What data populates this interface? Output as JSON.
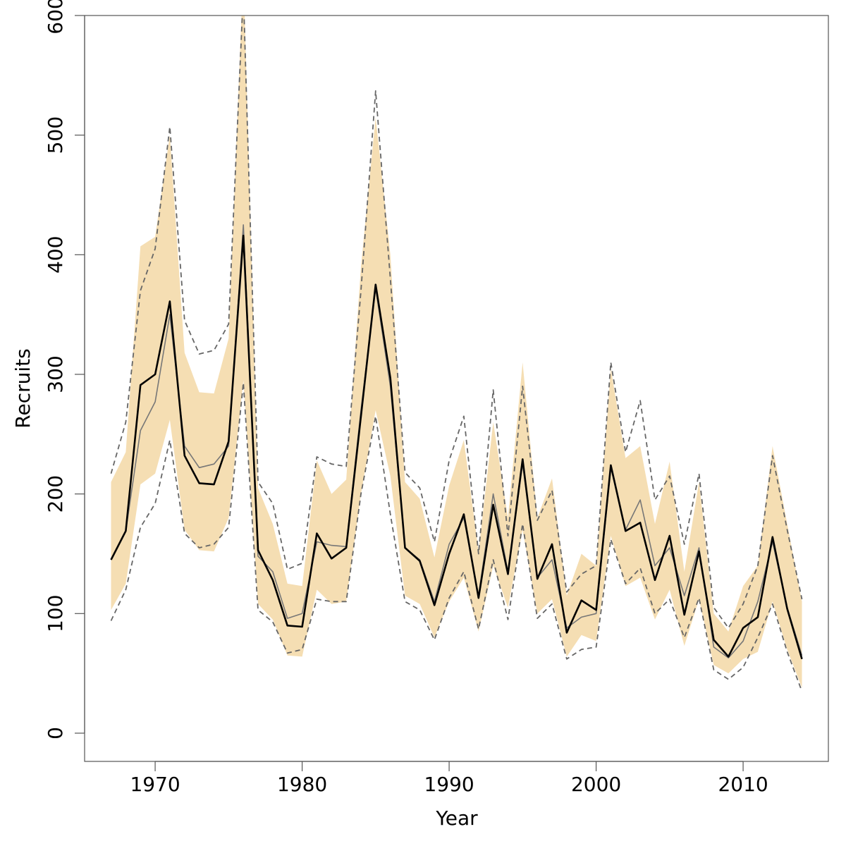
{
  "chart_data": {
    "type": "line",
    "xlabel": "Year",
    "ylabel": "Recruits",
    "x": [
      1967,
      1968,
      1969,
      1970,
      1971,
      1972,
      1973,
      1974,
      1975,
      1976,
      1977,
      1978,
      1979,
      1980,
      1981,
      1982,
      1983,
      1984,
      1985,
      1986,
      1987,
      1988,
      1989,
      1990,
      1991,
      1992,
      1993,
      1994,
      1995,
      1996,
      1997,
      1998,
      1999,
      2000,
      2001,
      2002,
      2003,
      2004,
      2005,
      2006,
      2007,
      2008,
      2009,
      2010,
      2011,
      2012,
      2013,
      2014
    ],
    "xlim": [
      1965.2,
      2015.8
    ],
    "xticks": [
      1970,
      1980,
      1990,
      2000,
      2010
    ],
    "ylim": [
      -23.6,
      600
    ],
    "yticks": [
      0,
      100,
      200,
      300,
      400,
      500,
      600
    ],
    "series": [
      {
        "kind": "band",
        "color": "#f5deb3",
        "upper": [
          210,
          235,
          407,
          415,
          500,
          318,
          285,
          284,
          330,
          640,
          205,
          175,
          125,
          123,
          228,
          200,
          212,
          390,
          515,
          400,
          210,
          196,
          147,
          207,
          245,
          152,
          260,
          180,
          310,
          180,
          213,
          115,
          150,
          140,
          305,
          230,
          240,
          175,
          227,
          135,
          210,
          100,
          85,
          123,
          140,
          240,
          175,
          110
        ],
        "lower": [
          103,
          125,
          208,
          217,
          262,
          170,
          153,
          152,
          180,
          295,
          108,
          95,
          65,
          64,
          120,
          108,
          110,
          200,
          270,
          215,
          115,
          108,
          80,
          110,
          130,
          85,
          140,
          105,
          170,
          100,
          112,
          64,
          82,
          77,
          165,
          123,
          130,
          95,
          120,
          73,
          112,
          57,
          50,
          62,
          68,
          110,
          70,
          38
        ]
      },
      {
        "kind": "dashed",
        "color": "#666666",
        "values": [
          217,
          260,
          370,
          405,
          507,
          345,
          317,
          320,
          342,
          620,
          210,
          192,
          137,
          142,
          231,
          225,
          223,
          370,
          537,
          380,
          218,
          205,
          160,
          228,
          265,
          150,
          287,
          165,
          290,
          178,
          203,
          118,
          133,
          140,
          310,
          235,
          278,
          195,
          215,
          158,
          217,
          105,
          88,
          108,
          140,
          232,
          170,
          112
        ]
      },
      {
        "kind": "dashed",
        "color": "#666666",
        "values": [
          94,
          120,
          172,
          192,
          245,
          167,
          155,
          158,
          172,
          293,
          103,
          93,
          67,
          70,
          112,
          110,
          110,
          200,
          265,
          183,
          110,
          103,
          78,
          113,
          135,
          87,
          145,
          95,
          175,
          96,
          108,
          62,
          70,
          72,
          162,
          125,
          138,
          100,
          112,
          80,
          113,
          53,
          45,
          55,
          80,
          108,
          68,
          35
        ]
      },
      {
        "kind": "thin",
        "color": "#777777",
        "values": [
          145,
          169,
          253,
          277,
          350,
          240,
          222,
          225,
          240,
          425,
          148,
          135,
          96,
          100,
          160,
          157,
          156,
          270,
          372,
          290,
          155,
          145,
          110,
          158,
          180,
          115,
          200,
          135,
          225,
          130,
          145,
          88,
          97,
          100,
          222,
          170,
          195,
          140,
          155,
          115,
          155,
          72,
          63,
          77,
          110,
          160,
          105,
          65
        ]
      },
      {
        "kind": "thick",
        "color": "#000000",
        "values": [
          145,
          169,
          291,
          300,
          361,
          232,
          209,
          208,
          244,
          416,
          153,
          128,
          90,
          89,
          167,
          146,
          155,
          265,
          375,
          297,
          155,
          144,
          107,
          150,
          183,
          113,
          191,
          133,
          229,
          129,
          158,
          84,
          111,
          103,
          224,
          169,
          176,
          128,
          165,
          99,
          152,
          78,
          64,
          88,
          97,
          164,
          104,
          62
        ]
      }
    ]
  }
}
